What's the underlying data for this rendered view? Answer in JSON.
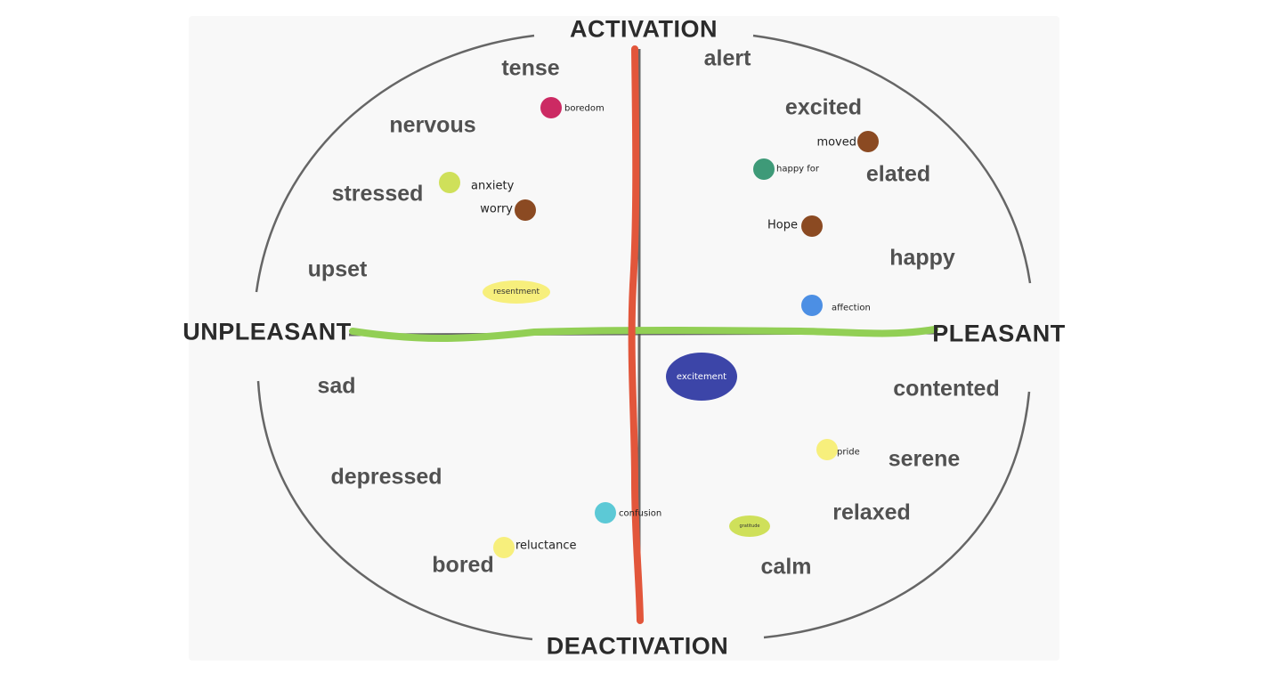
{
  "axes": {
    "top": "ACTIVATION",
    "bottom": "DEACTIVATION",
    "left": "UNPLEASANT",
    "right": "PLEASANT",
    "vertical_color": "#e2563b",
    "horizontal_color": "#92cf55"
  },
  "words": [
    {
      "key": "tense",
      "text": "tense"
    },
    {
      "key": "nervous",
      "text": "nervous"
    },
    {
      "key": "stressed",
      "text": "stressed"
    },
    {
      "key": "upset",
      "text": "upset"
    },
    {
      "key": "sad",
      "text": "sad"
    },
    {
      "key": "depressed",
      "text": "depressed"
    },
    {
      "key": "bored",
      "text": "bored"
    },
    {
      "key": "alert",
      "text": "alert"
    },
    {
      "key": "excited",
      "text": "excited"
    },
    {
      "key": "elated",
      "text": "elated"
    },
    {
      "key": "happy",
      "text": "happy"
    },
    {
      "key": "contented",
      "text": "contented"
    },
    {
      "key": "serene",
      "text": "serene"
    },
    {
      "key": "relaxed",
      "text": "relaxed"
    },
    {
      "key": "calm",
      "text": "calm"
    }
  ],
  "emotions": [
    {
      "key": "boredom",
      "label": "boredom",
      "color": "#cc2a63"
    },
    {
      "key": "anxiety",
      "label": "anxiety",
      "color": "#cfe05a"
    },
    {
      "key": "worry",
      "label": "worry",
      "color": "#8b4a22"
    },
    {
      "key": "resentment",
      "label": "resentment",
      "color": "#f7ef7c"
    },
    {
      "key": "moved",
      "label": "moved",
      "color": "#8b4a22"
    },
    {
      "key": "happy_for",
      "label": "happy for",
      "color": "#3e9a78"
    },
    {
      "key": "hope",
      "label": "Hope",
      "color": "#8b4a22"
    },
    {
      "key": "affection",
      "label": "affection",
      "color": "#4c8fe4"
    },
    {
      "key": "excitement",
      "label": "excitement",
      "color": "#3c45a8"
    },
    {
      "key": "pride",
      "label": "pride",
      "color": "#f7ef7c"
    },
    {
      "key": "confusion",
      "label": "confusion",
      "color": "#5cc9d6"
    },
    {
      "key": "gratitude",
      "label": "gratitude",
      "color": "#cfe05a"
    },
    {
      "key": "reluctance",
      "label": "reluctance",
      "color": "#f7ef7c"
    }
  ]
}
